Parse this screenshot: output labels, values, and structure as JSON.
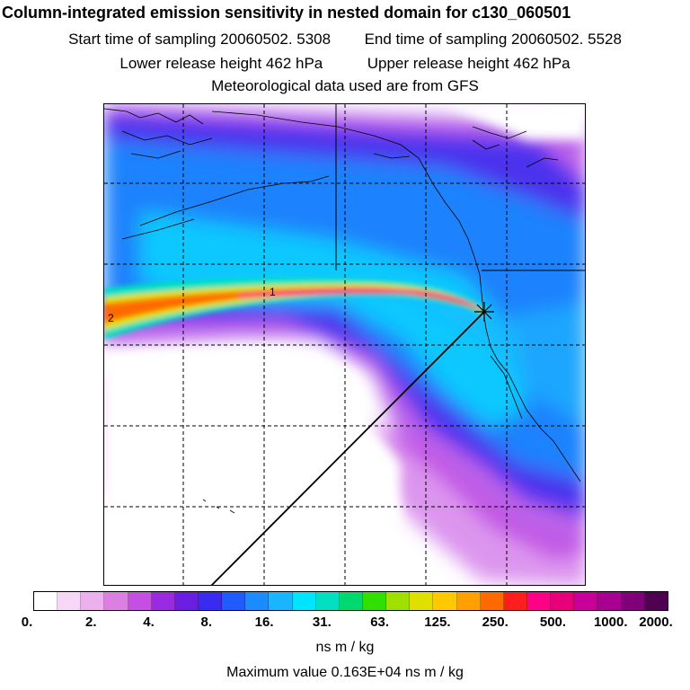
{
  "titles": {
    "main": "Column-integrated emission sensitivity in nested domain for c130_060501",
    "start_time": "Start time of sampling 20060502.  5308",
    "end_time": "End time of sampling 20060502.  5528",
    "lower_height": "Lower release height  462 hPa",
    "upper_height": "Upper release height  462 hPa",
    "met_data": "Meteorological data used are from GFS"
  },
  "map": {
    "labels": {
      "marker1": "1",
      "marker2": "2"
    },
    "release_marker_icon": "star-cross-icon"
  },
  "colorbar": {
    "colors": [
      "#ffffff",
      "#f7d7f7",
      "#ecb0ec",
      "#dc7fe3",
      "#c54fe3",
      "#9a2ae0",
      "#6a1fe0",
      "#3a2bf0",
      "#1f5bff",
      "#1b8cff",
      "#19b5ff",
      "#00e5ff",
      "#00e0c0",
      "#00d870",
      "#30e000",
      "#a0e000",
      "#e0e000",
      "#ffc800",
      "#ffa000",
      "#ff6a00",
      "#ff1e1e",
      "#ff0088",
      "#e8007a",
      "#c8009a",
      "#a80090",
      "#80007a",
      "#500050"
    ],
    "tick_labels": [
      "0.",
      "2.",
      "4.",
      "8.",
      "16.",
      "31.",
      "63.",
      "125.",
      "250.",
      "500.",
      "1000.",
      "2000."
    ],
    "units": "ns m / kg"
  },
  "maximum": "Maximum value  0.163E+04 ns m / kg"
}
